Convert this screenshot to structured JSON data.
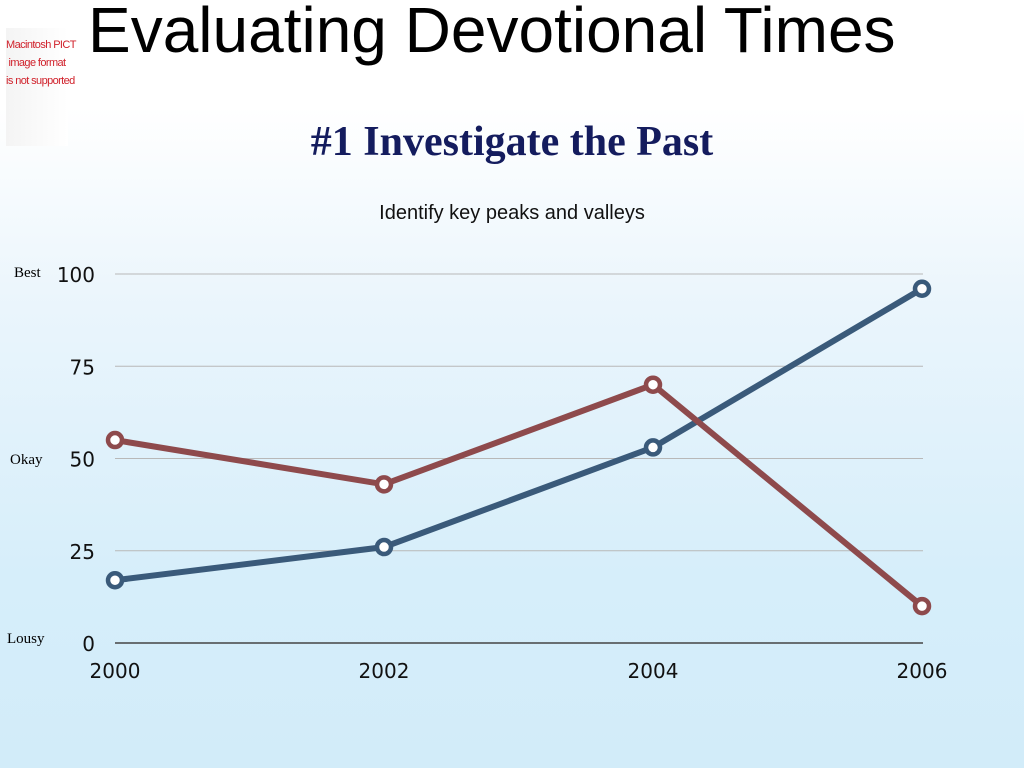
{
  "slide": {
    "title": "Evaluating Devotional Times",
    "subtitle": "#1 Investigate the Past",
    "caption": "Identify key peaks and valleys",
    "placeholder_image": [
      "Macintosh PICT",
      "image format",
      "is not supported"
    ],
    "side_labels": {
      "best": "Best",
      "okay": "Okay",
      "lousy": "Lousy"
    }
  },
  "chart_data": {
    "type": "line",
    "title": "",
    "xlabel": "",
    "ylabel": "",
    "categories": [
      "2000",
      "2002",
      "2004",
      "2006"
    ],
    "ylim": [
      0,
      100
    ],
    "yticks": [
      "0",
      "25",
      "50",
      "75",
      "100"
    ],
    "grid": true,
    "legend": "none",
    "series": [
      {
        "color": "#3a5a7a",
        "values": [
          17,
          26,
          53,
          96
        ]
      },
      {
        "color": "#8e4a4c",
        "values": [
          55,
          43,
          70,
          10
        ]
      }
    ]
  }
}
